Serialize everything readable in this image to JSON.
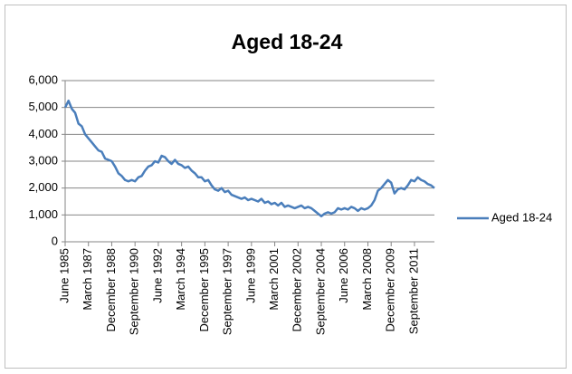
{
  "chart_data": {
    "type": "line",
    "title": "Aged 18-24",
    "categories": [
      "June 1985",
      null,
      null,
      null,
      null,
      null,
      null,
      "March 1987",
      null,
      null,
      null,
      null,
      null,
      null,
      "December 1988",
      null,
      null,
      null,
      null,
      null,
      null,
      "September 1990",
      null,
      null,
      null,
      null,
      null,
      null,
      "June 1992",
      null,
      null,
      null,
      null,
      null,
      null,
      "March 1994",
      null,
      null,
      null,
      null,
      null,
      null,
      "December 1995",
      null,
      null,
      null,
      null,
      null,
      null,
      "September 1997",
      null,
      null,
      null,
      null,
      null,
      null,
      "June 1999",
      null,
      null,
      null,
      null,
      null,
      null,
      "March 2001",
      null,
      null,
      null,
      null,
      null,
      null,
      "December 2002",
      null,
      null,
      null,
      null,
      null,
      null,
      "September 2004",
      null,
      null,
      null,
      null,
      null,
      null,
      "June 2006",
      null,
      null,
      null,
      null,
      null,
      null,
      "March 2008",
      null,
      null,
      null,
      null,
      null,
      null,
      "December 2009",
      null,
      null,
      null,
      null,
      null,
      null,
      "September 2011",
      null,
      null,
      null,
      null,
      null,
      null
    ],
    "series": [
      {
        "name": "Aged 18-24",
        "color": "#4a7ebb",
        "values": [
          5000,
          5250,
          4950,
          4800,
          4400,
          4300,
          4000,
          3850,
          3700,
          3550,
          3400,
          3350,
          3100,
          3050,
          3000,
          2800,
          2550,
          2450,
          2300,
          2250,
          2300,
          2250,
          2400,
          2450,
          2650,
          2800,
          2850,
          3000,
          2950,
          3200,
          3150,
          3000,
          2900,
          3050,
          2900,
          2850,
          2750,
          2800,
          2650,
          2550,
          2400,
          2400,
          2250,
          2300,
          2100,
          1950,
          1900,
          2000,
          1850,
          1900,
          1750,
          1700,
          1650,
          1600,
          1650,
          1550,
          1600,
          1550,
          1500,
          1600,
          1450,
          1500,
          1400,
          1450,
          1350,
          1450,
          1300,
          1350,
          1300,
          1250,
          1300,
          1350,
          1250,
          1300,
          1250,
          1150,
          1050,
          950,
          1050,
          1100,
          1050,
          1100,
          1250,
          1200,
          1250,
          1200,
          1300,
          1250,
          1150,
          1250,
          1200,
          1250,
          1350,
          1550,
          1900,
          2000,
          2150,
          2300,
          2200,
          1800,
          1950,
          2000,
          1950,
          2100,
          2300,
          2250,
          2400,
          2300,
          2250,
          2150,
          2100,
          2000
        ]
      }
    ],
    "ylim": [
      0,
      6000
    ],
    "yticks": [
      0,
      {
        "value": 1000,
        "label": "1,000"
      },
      {
        "value": 2000,
        "label": "2,000"
      },
      {
        "value": 3000,
        "label": "3,000"
      },
      {
        "value": 4000,
        "label": "4,000"
      },
      {
        "value": 5000,
        "label": "5,000"
      },
      {
        "value": 6000,
        "label": "6,000"
      }
    ],
    "grid": true,
    "legend": "right"
  }
}
